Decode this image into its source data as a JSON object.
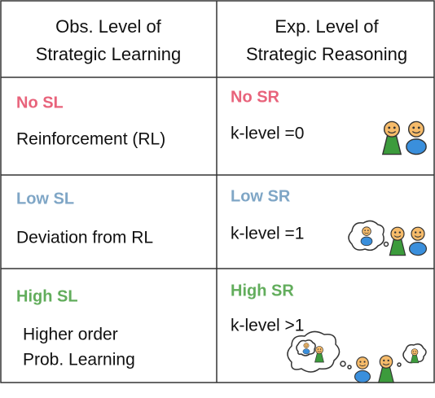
{
  "header": [
    [
      "Obs. Level of",
      "Strategic Learning"
    ],
    [
      "Exp. Level of",
      "Strategic Reasoning"
    ]
  ],
  "rows": [
    {
      "left": {
        "level": "No SL",
        "description": [
          "Reinforcement (RL)"
        ]
      },
      "right": {
        "level": "No SR",
        "description": "k-level =0"
      }
    },
    {
      "left": {
        "level": "Low SL",
        "description": [
          "Deviation from RL"
        ]
      },
      "right": {
        "level": "Low SR",
        "description": "k-level =1"
      }
    },
    {
      "left": {
        "level": "High SL",
        "description": [
          "Higher order",
          "Prob. Learning"
        ]
      },
      "right": {
        "level": "High SR",
        "description": "k-level >1"
      }
    }
  ]
}
